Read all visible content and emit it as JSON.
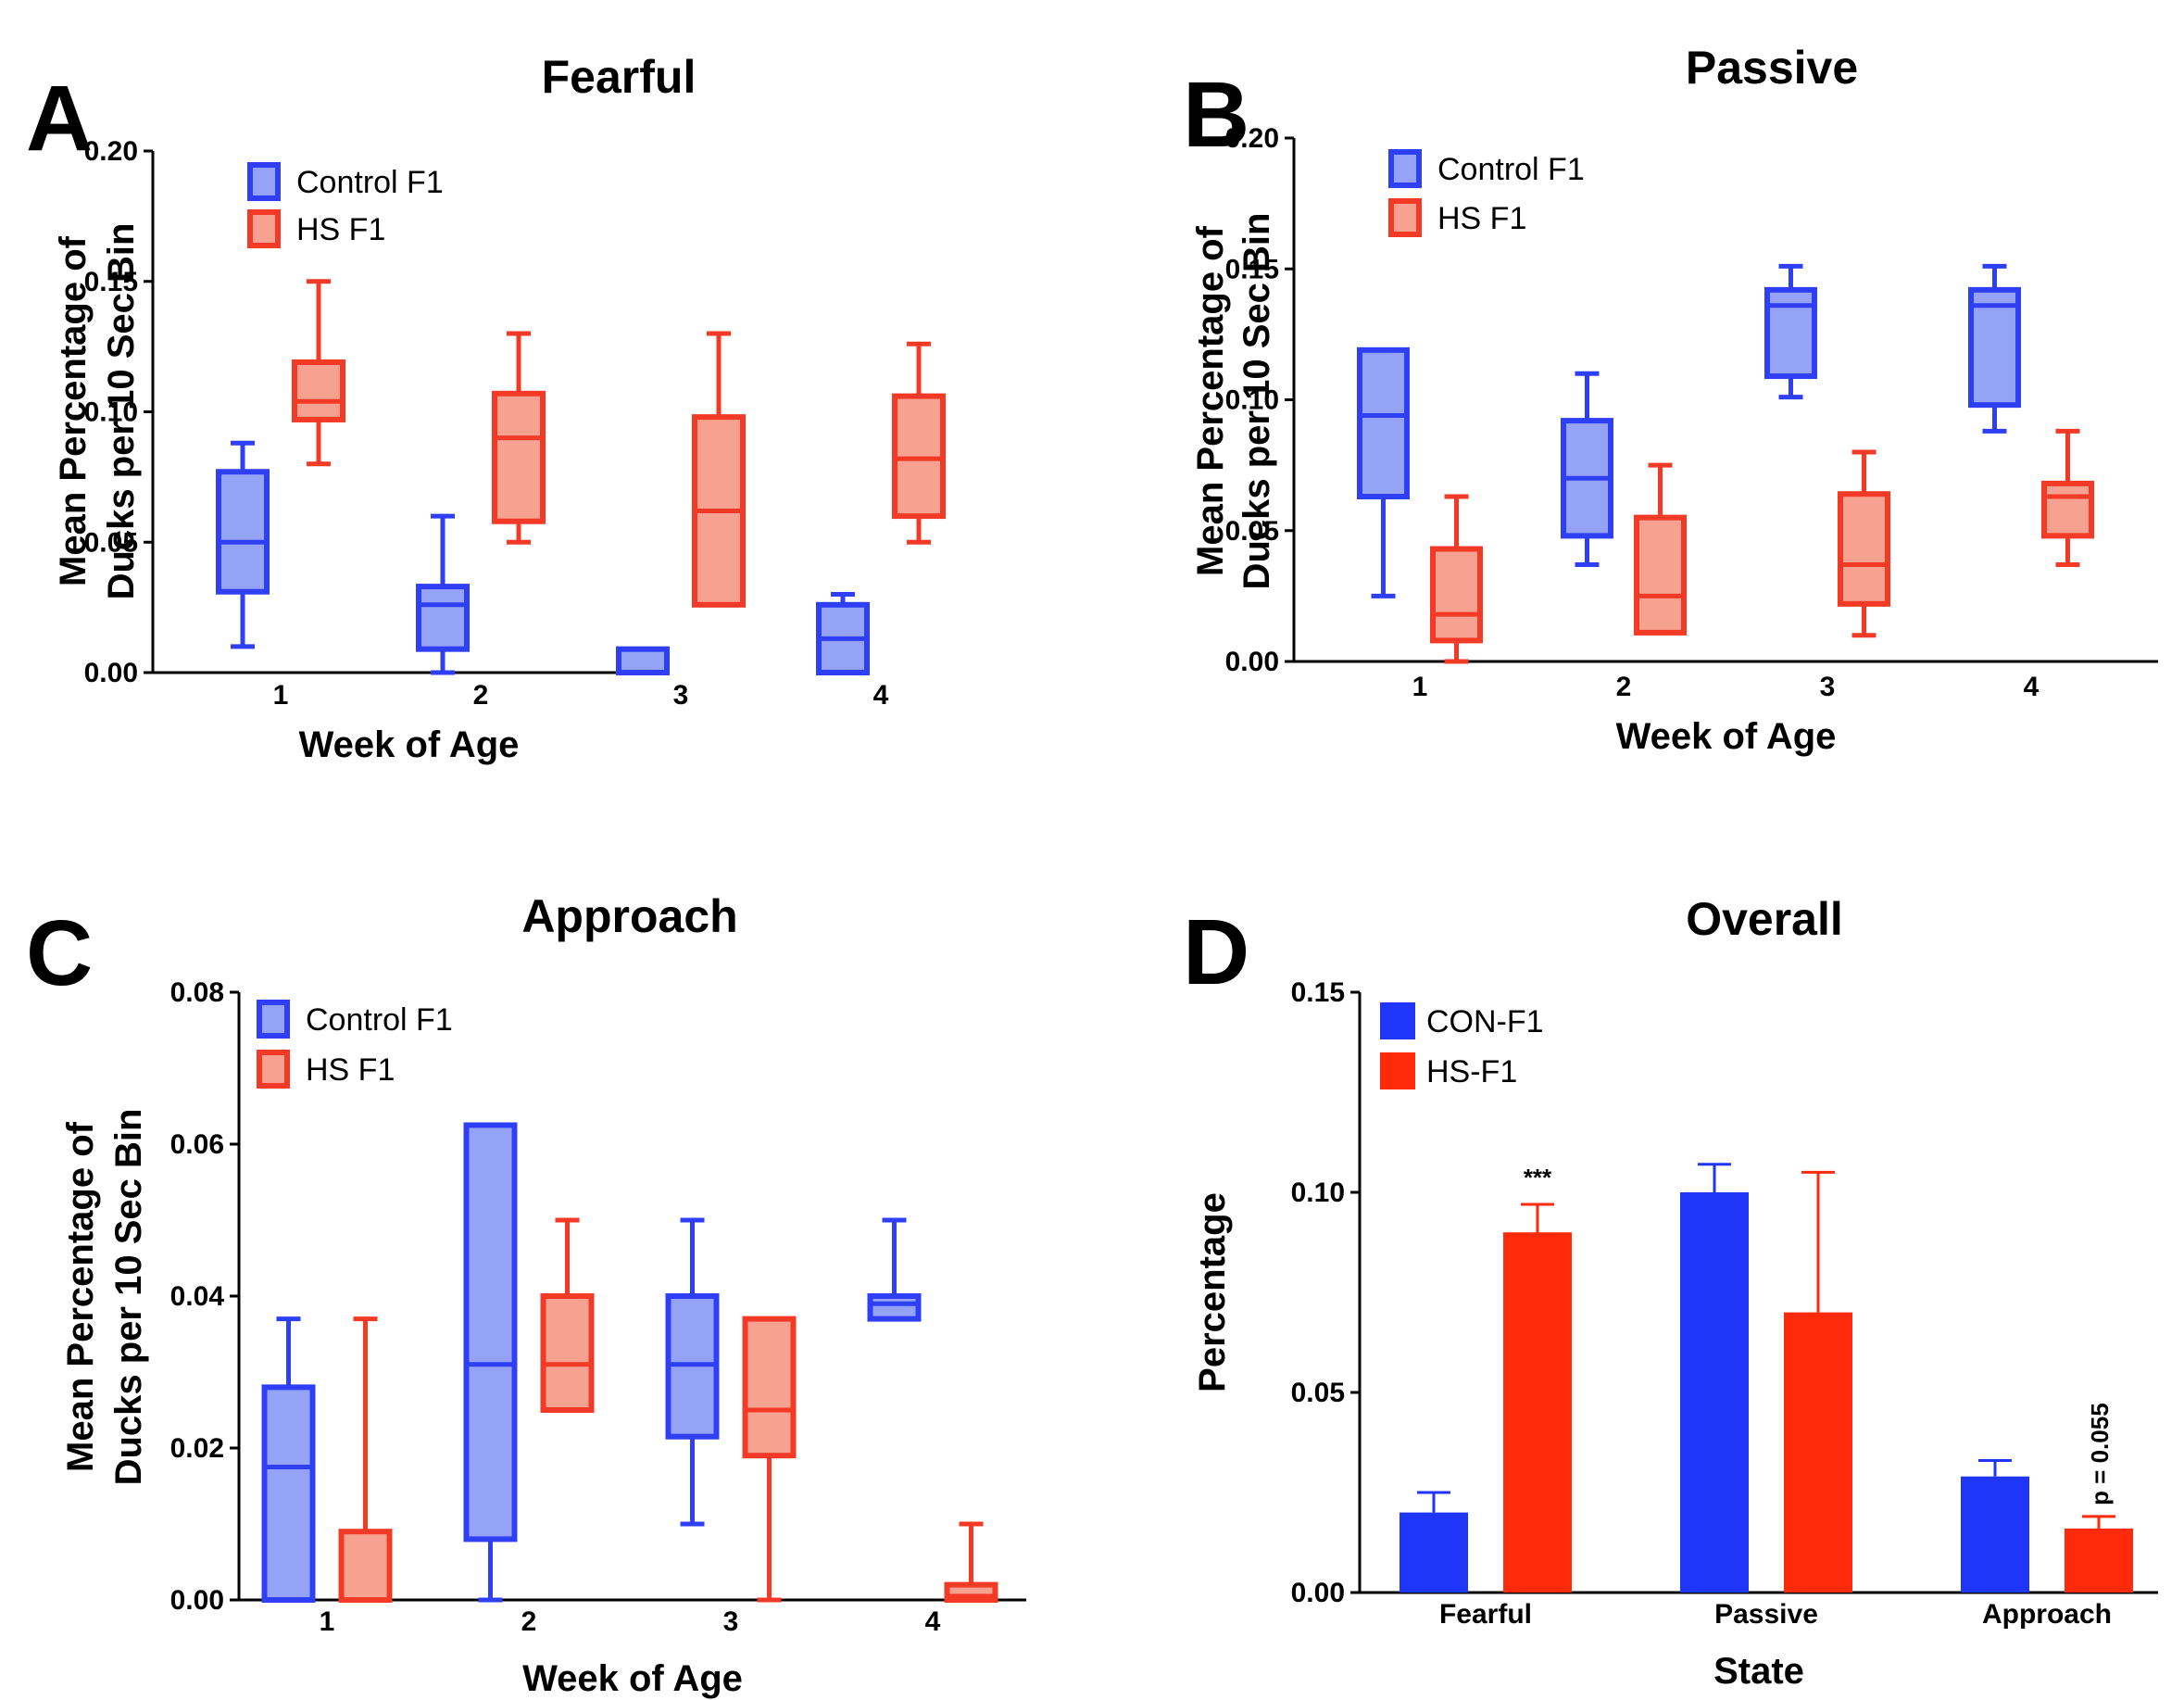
{
  "chart_data": [
    {
      "id": "A",
      "type": "box",
      "panel_label": "A",
      "title": "Fearful",
      "xlabel": "Week of Age",
      "ylabel": [
        "Mean Percentage of",
        "Ducks per 10 Sec Bin"
      ],
      "ylim": [
        0,
        0.2
      ],
      "yticks": [
        "0.00",
        "0.05",
        "0.10",
        "0.15",
        "0.20"
      ],
      "categories": [
        "1",
        "2",
        "3",
        "4"
      ],
      "legend": [
        "Control F1",
        "HS F1"
      ],
      "colors": {
        "Control F1": "#2f3ff5",
        "HS F1": "#f23a26"
      },
      "fills": {
        "Control F1": "#95a3f7",
        "HS F1": "#f7a291"
      },
      "series": [
        {
          "name": "Control F1",
          "boxes": [
            {
              "min": 0.01,
              "q1": 0.031,
              "median": 0.05,
              "q3": 0.077,
              "max": 0.088
            },
            {
              "min": 0.0,
              "q1": 0.009,
              "median": 0.026,
              "q3": 0.033,
              "max": 0.06
            },
            {
              "min": 0.0,
              "q1": 0.0,
              "median": 0.0,
              "q3": 0.009,
              "max": 0.009
            },
            {
              "min": 0.0,
              "q1": 0.0,
              "median": 0.013,
              "q3": 0.026,
              "max": 0.03
            }
          ]
        },
        {
          "name": "HS F1",
          "boxes": [
            {
              "min": 0.08,
              "q1": 0.097,
              "median": 0.104,
              "q3": 0.119,
              "max": 0.15
            },
            {
              "min": 0.05,
              "q1": 0.058,
              "median": 0.09,
              "q3": 0.107,
              "max": 0.13
            },
            {
              "min": 0.026,
              "q1": 0.026,
              "median": 0.062,
              "q3": 0.098,
              "max": 0.13
            },
            {
              "min": 0.05,
              "q1": 0.06,
              "median": 0.082,
              "q3": 0.106,
              "max": 0.126
            }
          ]
        }
      ]
    },
    {
      "id": "B",
      "type": "box",
      "panel_label": "B",
      "title": "Passive",
      "xlabel": "Week of Age",
      "ylabel": [
        "Mean Percentage of",
        "Ducks per 10 Sec Bin"
      ],
      "ylim": [
        0,
        0.2
      ],
      "yticks": [
        "0.00",
        "0.05",
        "0.10",
        "0.15",
        "0.20"
      ],
      "categories": [
        "1",
        "2",
        "3",
        "4"
      ],
      "legend": [
        "Control F1",
        "HS F1"
      ],
      "colors": {
        "Control F1": "#2f3ff5",
        "HS F1": "#f23a26"
      },
      "fills": {
        "Control F1": "#95a3f7",
        "HS F1": "#f7a291"
      },
      "series": [
        {
          "name": "Control F1",
          "boxes": [
            {
              "min": 0.025,
              "q1": 0.063,
              "median": 0.094,
              "q3": 0.119,
              "max": 0.119
            },
            {
              "min": 0.037,
              "q1": 0.048,
              "median": 0.07,
              "q3": 0.092,
              "max": 0.11
            },
            {
              "min": 0.101,
              "q1": 0.109,
              "median": 0.136,
              "q3": 0.142,
              "max": 0.151
            },
            {
              "min": 0.088,
              "q1": 0.098,
              "median": 0.136,
              "q3": 0.142,
              "max": 0.151
            }
          ]
        },
        {
          "name": "HS F1",
          "boxes": [
            {
              "min": 0.0,
              "q1": 0.008,
              "median": 0.018,
              "q3": 0.043,
              "max": 0.063
            },
            {
              "min": 0.011,
              "q1": 0.011,
              "median": 0.025,
              "q3": 0.055,
              "max": 0.075
            },
            {
              "min": 0.01,
              "q1": 0.022,
              "median": 0.037,
              "q3": 0.064,
              "max": 0.08
            },
            {
              "min": 0.037,
              "q1": 0.048,
              "median": 0.063,
              "q3": 0.068,
              "max": 0.088
            }
          ]
        }
      ]
    },
    {
      "id": "C",
      "type": "box",
      "panel_label": "C",
      "title": "Approach",
      "xlabel": "Week of Age",
      "ylabel": [
        "Mean Percentage of",
        "Ducks per 10 Sec Bin"
      ],
      "ylim": [
        0,
        0.08
      ],
      "yticks": [
        "0.00",
        "0.02",
        "0.04",
        "0.06",
        "0.08"
      ],
      "categories": [
        "1",
        "2",
        "3",
        "4"
      ],
      "legend": [
        "Control F1",
        "HS F1"
      ],
      "colors": {
        "Control F1": "#2f3ff5",
        "HS F1": "#f23a26"
      },
      "fills": {
        "Control F1": "#95a3f7",
        "HS F1": "#f7a291"
      },
      "series": [
        {
          "name": "Control F1",
          "boxes": [
            {
              "min": 0.0,
              "q1": 0.0,
              "median": 0.0175,
              "q3": 0.028,
              "max": 0.037
            },
            {
              "min": 0.0,
              "q1": 0.008,
              "median": 0.031,
              "q3": 0.0625,
              "max": 0.0625
            },
            {
              "min": 0.01,
              "q1": 0.0215,
              "median": 0.031,
              "q3": 0.04,
              "max": 0.05
            },
            {
              "min": 0.037,
              "q1": 0.037,
              "median": 0.039,
              "q3": 0.04,
              "max": 0.05
            }
          ]
        },
        {
          "name": "HS F1",
          "boxes": [
            {
              "min": 0.0,
              "q1": 0.0,
              "median": 0.0,
              "q3": 0.009,
              "max": 0.037
            },
            {
              "min": 0.025,
              "q1": 0.025,
              "median": 0.031,
              "q3": 0.04,
              "max": 0.05
            },
            {
              "min": 0.0,
              "q1": 0.019,
              "median": 0.025,
              "q3": 0.037,
              "max": 0.037
            },
            {
              "min": 0.0,
              "q1": 0.0,
              "median": 0.0005,
              "q3": 0.002,
              "max": 0.01
            }
          ]
        }
      ]
    },
    {
      "id": "D",
      "type": "bar",
      "panel_label": "D",
      "title": "Overall",
      "xlabel": "State",
      "ylabel": [
        "Percentage"
      ],
      "ylim": [
        0,
        0.15
      ],
      "yticks": [
        "0.00",
        "0.05",
        "0.10",
        "0.15"
      ],
      "categories": [
        "Fearful",
        "Passive",
        "Approach"
      ],
      "legend": [
        "CON-F1",
        "HS-F1"
      ],
      "colors": {
        "CON-F1": "#1f35f7",
        "HS-F1": "#ff2a0a"
      },
      "series": [
        {
          "name": "CON-F1",
          "values": [
            0.02,
            0.1,
            0.029
          ],
          "errors": [
            0.005,
            0.007,
            0.004
          ]
        },
        {
          "name": "HS-F1",
          "values": [
            0.09,
            0.07,
            0.016
          ],
          "errors": [
            0.007,
            0.035,
            0.003
          ]
        }
      ],
      "annotations": [
        {
          "text": "***",
          "series": "HS-F1",
          "category": "Fearful",
          "orientation": "horizontal"
        },
        {
          "text": "p = 0.055",
          "series": "HS-F1",
          "category": "Approach",
          "orientation": "vertical"
        }
      ]
    }
  ]
}
